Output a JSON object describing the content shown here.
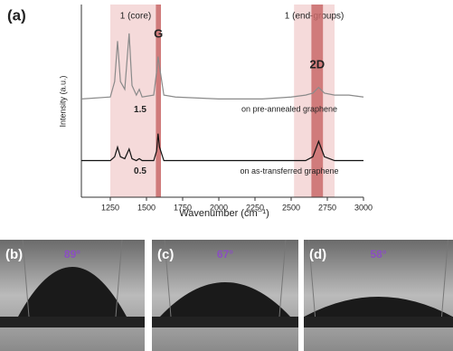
{
  "chart_data": {
    "type": "line",
    "panel_label": "(a)",
    "x_label": "Wavenumber (cm⁻¹)",
    "y_label": "Intensity (a.u.)",
    "xlim": [
      1050,
      3000
    ],
    "xticks": [
      1250,
      1500,
      1750,
      2000,
      2250,
      2500,
      2750,
      3000
    ],
    "ylim": [
      0,
      10
    ],
    "x": [
      1050,
      1250,
      1280,
      1300,
      1320,
      1350,
      1380,
      1400,
      1430,
      1450,
      1470,
      1550,
      1570,
      1580,
      1590,
      1620,
      1700,
      2000,
      2300,
      2500,
      2600,
      2650,
      2690,
      2730,
      2800,
      2900,
      3000
    ],
    "series": [
      {
        "name": "on pre-annealed graphene",
        "color": "#8a8a8a",
        "values": [
          5.1,
          5.2,
          6.0,
          8.1,
          6.0,
          5.6,
          8.5,
          5.8,
          5.3,
          5.6,
          5.2,
          5.3,
          6.5,
          7.3,
          6.8,
          5.3,
          5.2,
          5.1,
          5.1,
          5.2,
          5.3,
          5.4,
          5.7,
          5.4,
          5.3,
          5.3,
          5.2
        ]
      },
      {
        "name": "on as-transferred graphene",
        "color": "#111111",
        "values": [
          1.9,
          1.9,
          2.1,
          2.6,
          2.1,
          2.0,
          2.5,
          2.0,
          1.9,
          2.0,
          1.9,
          1.9,
          2.4,
          3.3,
          2.6,
          1.9,
          1.9,
          1.9,
          1.9,
          1.9,
          1.9,
          2.1,
          2.9,
          2.1,
          1.9,
          1.9,
          1.9
        ]
      }
    ],
    "series_scales": [
      "1.5",
      "0.5"
    ],
    "regions": [
      {
        "start": 1250,
        "end": 1600,
        "label": "1 (core)",
        "color": "#f3d3d3"
      },
      {
        "start": 2520,
        "end": 2800,
        "label": "1 (end-groups)",
        "color": "#f3d3d3"
      },
      {
        "start": 1565,
        "end": 1600,
        "label": "G",
        "color": "#c96a6a"
      },
      {
        "start": 2640,
        "end": 2720,
        "label": "2D",
        "color": "#c96a6a"
      }
    ]
  },
  "photos": [
    {
      "label": "(b)",
      "angle": "89°"
    },
    {
      "label": "(c)",
      "angle": "67°"
    },
    {
      "label": "(d)",
      "angle": "58°"
    }
  ]
}
